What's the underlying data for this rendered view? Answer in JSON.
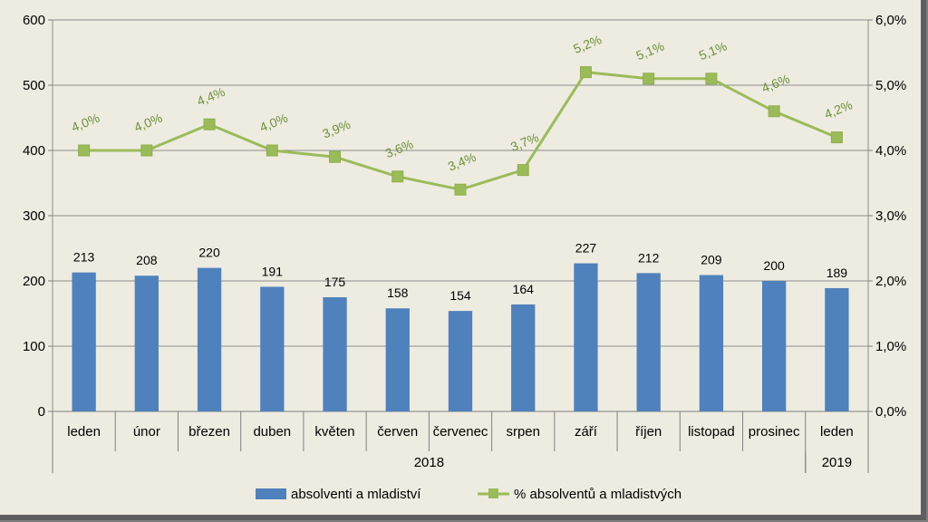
{
  "chart_data": {
    "type": "bar",
    "categories": [
      "leden",
      "únor",
      "březen",
      "duben",
      "květen",
      "červen",
      "červenec",
      "srpen",
      "září",
      "říjen",
      "listopad",
      "prosinec",
      "leden"
    ],
    "years": [
      {
        "label": "2018",
        "span": [
          0,
          11
        ]
      },
      {
        "label": "2019",
        "span": [
          12,
          12
        ]
      }
    ],
    "series": [
      {
        "name": "absolventi a mladiství",
        "type": "bar",
        "axis": "left",
        "color": "#4f81bd",
        "values": [
          213,
          208,
          220,
          191,
          175,
          158,
          154,
          164,
          227,
          212,
          209,
          200,
          189
        ],
        "labels": [
          "213",
          "208",
          "220",
          "191",
          "175",
          "158",
          "154",
          "164",
          "227",
          "212",
          "209",
          "200",
          "189"
        ]
      },
      {
        "name": "% absolventů a mladistvých",
        "type": "line",
        "axis": "right",
        "color": "#9bbb59",
        "values": [
          4.0,
          4.0,
          4.4,
          4.0,
          3.9,
          3.6,
          3.4,
          3.7,
          5.2,
          5.1,
          5.1,
          4.6,
          4.2
        ],
        "labels": [
          "4,0%",
          "4,0%",
          "4,4%",
          "4,0%",
          "3,9%",
          "3,6%",
          "3,4%",
          "3,7%",
          "5,2%",
          "5,1%",
          "5,1%",
          "4,6%",
          "4,2%"
        ]
      }
    ],
    "y_left": {
      "ylim": [
        0,
        600
      ],
      "ticks": [
        "0",
        "100",
        "200",
        "300",
        "400",
        "500",
        "600"
      ]
    },
    "y_right": {
      "ylim": [
        0,
        6
      ],
      "ticks": [
        "0,0%",
        "1,0%",
        "2,0%",
        "3,0%",
        "4,0%",
        "5,0%",
        "6,0%"
      ]
    },
    "grid": true,
    "legend": "bottom"
  }
}
